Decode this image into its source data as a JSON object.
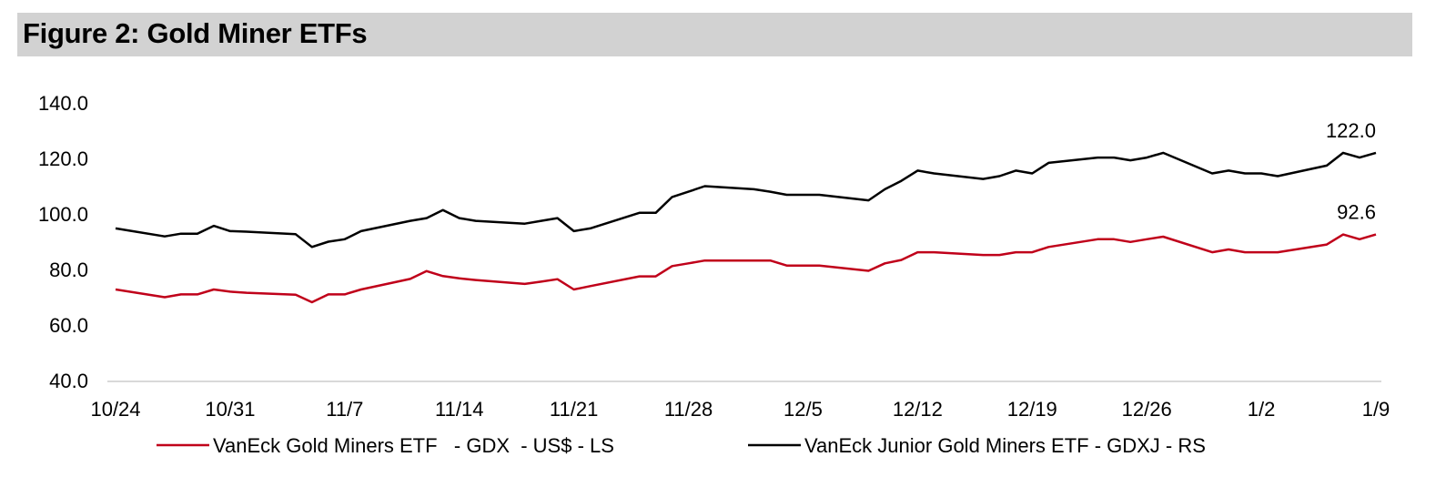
{
  "title": "Figure 2: Gold Miner ETFs",
  "chart_data": {
    "type": "line",
    "ylim": [
      40,
      140
    ],
    "yticks": [
      40,
      60,
      80,
      100,
      120,
      140
    ],
    "ytick_labels": [
      "40.0",
      "60.0",
      "80.0",
      "100.0",
      "120.0",
      "140.0"
    ],
    "xtick_labels": [
      "10/24",
      "10/31",
      "11/7",
      "11/14",
      "11/21",
      "11/28",
      "12/5",
      "12/12",
      "12/19",
      "12/26",
      "1/2",
      "1/9"
    ],
    "x_range": [
      0,
      77
    ],
    "xtick_positions": [
      0,
      7,
      14,
      21,
      28,
      35,
      42,
      49,
      56,
      63,
      70,
      77
    ],
    "grid": false,
    "legend_position": "bottom",
    "series": [
      {
        "name": "VanEck Gold Miners ETF   - GDX  - US$ - LS",
        "color": "#c0001a",
        "end_label": "92.6",
        "x": [
          0,
          3,
          4,
          5,
          6,
          7,
          8,
          11,
          12,
          13,
          14,
          15,
          18,
          19,
          20,
          21,
          22,
          25,
          26,
          27,
          28,
          29,
          32,
          33,
          34,
          35,
          36,
          39,
          40,
          41,
          42,
          43,
          46,
          47,
          48,
          49,
          50,
          53,
          54,
          55,
          56,
          57,
          60,
          61,
          62,
          63,
          64,
          67,
          68,
          69,
          70,
          71,
          74,
          75,
          76,
          77
        ],
        "values": [
          72.8,
          70.0,
          71.0,
          71.0,
          72.8,
          72.0,
          71.6,
          70.9,
          68.2,
          71.0,
          71.0,
          72.8,
          76.6,
          79.4,
          77.6,
          76.8,
          76.2,
          74.8,
          75.6,
          76.5,
          72.8,
          74.0,
          77.5,
          77.5,
          81.2,
          82.2,
          83.2,
          83.2,
          83.2,
          81.4,
          81.4,
          81.4,
          79.5,
          82.2,
          83.4,
          86.2,
          86.2,
          85.2,
          85.2,
          86.2,
          86.2,
          88.1,
          90.9,
          90.9,
          89.9,
          90.9,
          91.8,
          86.2,
          87.2,
          86.2,
          86.2,
          86.2,
          89.0,
          92.6,
          90.9,
          92.6
        ]
      },
      {
        "name": "VanEck Junior Gold Miners ETF - GDXJ - RS",
        "color": "#000000",
        "end_label": "122.0",
        "x": [
          0,
          3,
          4,
          5,
          6,
          7,
          8,
          11,
          12,
          13,
          14,
          15,
          18,
          19,
          20,
          21,
          22,
          25,
          26,
          27,
          28,
          29,
          32,
          33,
          34,
          35,
          36,
          39,
          40,
          41,
          42,
          43,
          46,
          47,
          48,
          49,
          50,
          53,
          54,
          55,
          56,
          57,
          60,
          61,
          62,
          63,
          64,
          67,
          68,
          69,
          70,
          71,
          74,
          75,
          76,
          77
        ],
        "values": [
          94.8,
          91.9,
          92.9,
          92.9,
          95.7,
          93.8,
          93.6,
          92.7,
          88.1,
          90.0,
          90.9,
          93.8,
          97.5,
          98.5,
          101.4,
          98.5,
          97.5,
          96.5,
          97.5,
          98.5,
          93.8,
          94.8,
          100.4,
          100.4,
          106.1,
          108.0,
          110.0,
          108.9,
          108.0,
          106.9,
          106.9,
          106.9,
          104.9,
          108.9,
          111.9,
          115.6,
          114.6,
          112.6,
          113.6,
          115.6,
          114.6,
          118.4,
          120.3,
          120.3,
          119.3,
          120.3,
          122.0,
          114.6,
          115.6,
          114.6,
          114.6,
          113.6,
          117.4,
          122.0,
          120.3,
          122.0
        ]
      }
    ]
  }
}
